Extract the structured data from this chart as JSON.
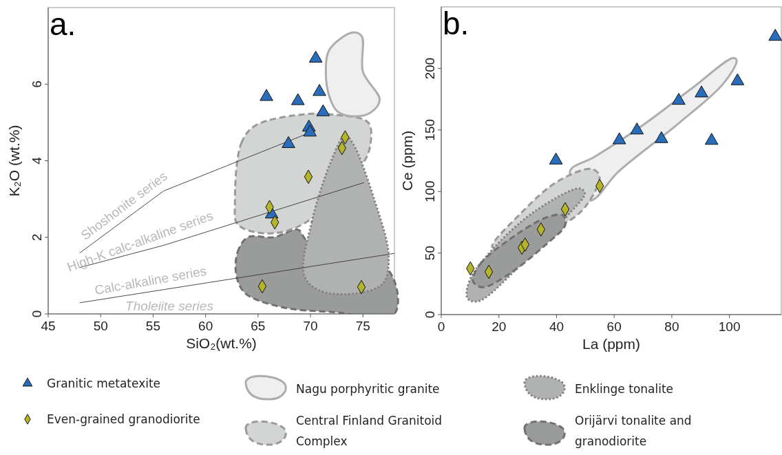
{
  "chart_data": [
    {
      "type": "scatter",
      "title": "a.",
      "xlabel": "SiO₂(wt.%)",
      "ylabel": "K₂O (wt.%)",
      "xlim": [
        45,
        78
      ],
      "ylim": [
        0,
        8
      ],
      "xticks": [
        45,
        50,
        55,
        60,
        65,
        70,
        75
      ],
      "yticks": [
        0,
        2,
        4,
        6
      ],
      "legend": "bottom",
      "series": [
        {
          "name": "Granitic metatexite",
          "type": "scatter",
          "marker": "triangle",
          "color": "#2a6ebb",
          "x": [
            70.5,
            65.8,
            68.8,
            70.85,
            71.2,
            69.85,
            69.95,
            67.9,
            66.3
          ],
          "values": [
            6.67,
            5.67,
            5.56,
            5.8,
            5.27,
            4.87,
            4.74,
            4.44,
            2.6
          ]
        },
        {
          "name": "Even-grained granodiorite",
          "type": "scatter",
          "marker": "diamond",
          "color": "#b5b52a",
          "x": [
            73.3,
            73.0,
            69.8,
            66.1,
            66.6,
            65.4,
            74.85
          ],
          "values": [
            4.61,
            4.33,
            3.58,
            2.79,
            2.39,
            0.72,
            0.7
          ]
        },
        {
          "name": "Nagu porphyritic granite",
          "type": "area",
          "line_style": "solid",
          "color": "#eeefee",
          "x": [
            71.83,
            74.02,
            74.88,
            75.0,
            76.59,
            75.73,
            74.02,
            72.56,
            71.83,
            71.46
          ],
          "values": [
            6.91,
            7.35,
            7.25,
            6.32,
            5.59,
            5.26,
            5.16,
            5.29,
            5.65,
            6.32
          ]
        },
        {
          "name": "Central Finland Granitoid Complex",
          "type": "area",
          "line_style": "dashed",
          "color": "#d3d4d4",
          "x": [
            62.8,
            63.41,
            64.76,
            69.63,
            72.3,
            75.49,
            75.73,
            75.0,
            69.63,
            65.98,
            63.05
          ],
          "values": [
            2.87,
            4.46,
            4.92,
            5.22,
            5.2,
            5.0,
            4.46,
            3.93,
            2.4,
            2.1,
            2.34
          ]
        },
        {
          "name": "Enklinge tonalite",
          "type": "area",
          "line_style": "dotted",
          "color": "#b0b1b1",
          "x": [
            69.39,
            70.12,
            72.07,
            73.29,
            74.02,
            76.22,
            77.44,
            76.95,
            74.51,
            70.85
          ],
          "values": [
            1.01,
            2.4,
            4.06,
            4.66,
            4.46,
            2.87,
            1.54,
            0.81,
            0.54,
            0.61
          ]
        },
        {
          "name": "Orijärvi tonalite and granodiorite",
          "type": "area",
          "line_style": "dashed",
          "color": "#9a9b9b",
          "x": [
            62.93,
            63.05,
            64.02,
            66.5,
            68.8,
            69.7,
            77.44,
            78.0,
            72.07,
            67.2,
            63.78
          ],
          "values": [
            1.01,
            1.61,
            2.0,
            2.0,
            2.2,
            1.9,
            1.14,
            0.0,
            0.05,
            0.18,
            0.54
          ]
        },
        {
          "type": "line",
          "marker": "none",
          "line_style": "solid",
          "color": "#333333",
          "x": [
            48.0,
            56.0,
            70.0
          ],
          "values": [
            1.59,
            3.21,
            4.74
          ]
        },
        {
          "type": "line",
          "marker": "none",
          "line_style": "solid",
          "color": "#333333",
          "x": [
            48.0,
            56.0,
            75.1
          ],
          "values": [
            1.21,
            1.79,
            3.43
          ]
        },
        {
          "type": "line",
          "marker": "none",
          "line_style": "solid",
          "color": "#333333",
          "x": [
            48.0,
            78.0
          ],
          "values": [
            0.29,
            1.58
          ]
        }
      ],
      "annotations": [
        "Shoshonite series",
        "High-K calc-alkaline series",
        "Calc-alkaline series",
        "Tholeiite series"
      ]
    },
    {
      "type": "scatter",
      "title": "b.",
      "xlabel": "La (ppm)",
      "ylabel": "Ce (ppm)",
      "xlim": [
        0,
        118
      ],
      "ylim": [
        0,
        250
      ],
      "xticks": [
        0,
        20,
        40,
        60,
        80,
        100
      ],
      "yticks": [
        0,
        50,
        100,
        150,
        200
      ],
      "series": [
        {
          "type": "scatter",
          "marker": "triangle",
          "color": "#2a6ebb",
          "x": [
            39.8,
            61.8,
            67.9,
            76.4,
            82.4,
            90.3,
            93.8,
            102.8,
            115.9
          ],
          "values": [
            125.3,
            141.7,
            149.7,
            142.7,
            173.8,
            179.8,
            141.3,
            189.7,
            225.8
          ]
        },
        {
          "type": "scatter",
          "marker": "diamond",
          "color": "#b5b52a",
          "x": [
            10.1,
            16.5,
            28.0,
            29.1,
            34.6,
            43.0,
            55.0
          ],
          "values": [
            37.5,
            34.7,
            54.3,
            56.9,
            69.2,
            85.6,
            104.5
          ]
        },
        {
          "type": "area",
          "line_style": "solid",
          "color": "#eeefee",
          "x": [
            44.7,
            53.2,
            70.0,
            86.9,
            101.3,
            102.5,
            97.9,
            82.7,
            61.6,
            51.5
          ],
          "values": [
            116.4,
            128.2,
            154.0,
            183.7,
            208.5,
            206.5,
            187.7,
            156.0,
            116.4,
            92.6
          ]
        },
        {
          "type": "area",
          "line_style": "dashed",
          "color": "#d3d4d4",
          "x": [
            17.7,
            27.8,
            40.5,
            52.3,
            54.9,
            51.5,
            44.7
          ],
          "values": [
            54.9,
            82.7,
            108.4,
            118.3,
            112.4,
            92.6,
            76.7
          ]
        },
        {
          "type": "area",
          "line_style": "dotted",
          "color": "#b0b1b1",
          "x": [
            8.9,
            10.1,
            19.4,
            32.9,
            48.1,
            49.8,
            44.7,
            27.8,
            13.5,
            10.1
          ],
          "values": [
            14.3,
            29.1,
            56.9,
            84.6,
            102.5,
            98.5,
            82.7,
            41.0,
            11.3,
            11.3
          ]
        },
        {
          "type": "area",
          "line_style": "dashed",
          "color": "#9a9b9b",
          "x": [
            11.0,
            13.5,
            23.6,
            36.3,
            42.2,
            43.0,
            36.3,
            23.6,
            14.3
          ],
          "values": [
            27.2,
            41.0,
            60.9,
            78.7,
            80.7,
            72.7,
            56.9,
            33.1,
            22.2
          ]
        }
      ]
    }
  ]
}
